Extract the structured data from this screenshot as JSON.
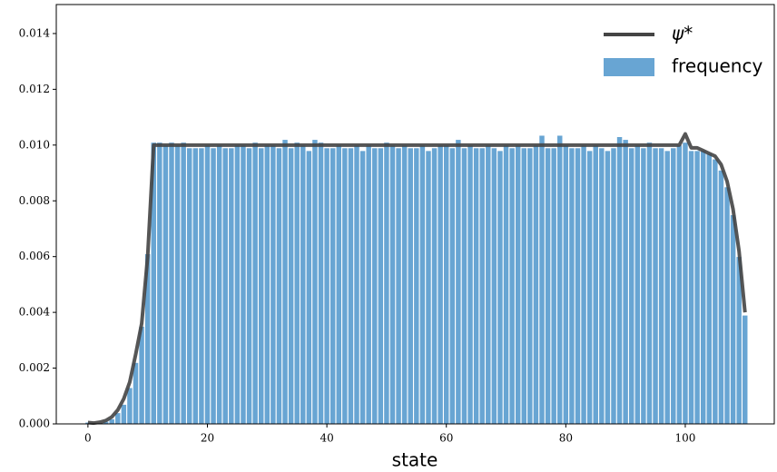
{
  "chart_data": {
    "type": "bar",
    "xlabel": "state",
    "legend": "upper right",
    "x": [
      0,
      1,
      2,
      3,
      4,
      5,
      6,
      7,
      8,
      9,
      10,
      11,
      12,
      13,
      14,
      15,
      16,
      17,
      18,
      19,
      20,
      21,
      22,
      23,
      24,
      25,
      26,
      27,
      28,
      29,
      30,
      31,
      32,
      33,
      34,
      35,
      36,
      37,
      38,
      39,
      40,
      41,
      42,
      43,
      44,
      45,
      46,
      47,
      48,
      49,
      50,
      51,
      52,
      53,
      54,
      55,
      56,
      57,
      58,
      59,
      60,
      61,
      62,
      63,
      64,
      65,
      66,
      67,
      68,
      69,
      70,
      71,
      72,
      73,
      74,
      75,
      76,
      77,
      78,
      79,
      80,
      81,
      82,
      83,
      84,
      85,
      86,
      87,
      88,
      89,
      90,
      91,
      92,
      93,
      94,
      95,
      96,
      97,
      98,
      99,
      100,
      101,
      102,
      103,
      104,
      105,
      106,
      107,
      108,
      109,
      110
    ],
    "series": [
      {
        "name": "frequency",
        "type": "bar",
        "color": "#68a5d3",
        "values": [
          6e-05,
          2e-05,
          4e-05,
          9e-05,
          0.00018,
          0.0004,
          0.0007,
          0.0013,
          0.0022,
          0.0035,
          0.0061,
          0.0101,
          0.0101,
          0.01,
          0.0101,
          0.01,
          0.0101,
          0.0099,
          0.0099,
          0.0099,
          0.01,
          0.0099,
          0.01,
          0.0099,
          0.0099,
          0.01,
          0.01,
          0.0099,
          0.0101,
          0.0099,
          0.01,
          0.01,
          0.0099,
          0.0102,
          0.0099,
          0.0101,
          0.01,
          0.0098,
          0.0102,
          0.0101,
          0.0099,
          0.0099,
          0.01,
          0.0099,
          0.0099,
          0.01,
          0.0098,
          0.01,
          0.0099,
          0.0099,
          0.0101,
          0.01,
          0.0099,
          0.01,
          0.0099,
          0.0099,
          0.01,
          0.0098,
          0.0099,
          0.01,
          0.01,
          0.0099,
          0.0102,
          0.0099,
          0.01,
          0.0099,
          0.0099,
          0.01,
          0.0099,
          0.0098,
          0.01,
          0.0099,
          0.01,
          0.0099,
          0.0099,
          0.01,
          0.01035,
          0.0099,
          0.0099,
          0.01035,
          0.01,
          0.0099,
          0.0099,
          0.01,
          0.0098,
          0.01,
          0.0099,
          0.0098,
          0.0099,
          0.0103,
          0.0102,
          0.0099,
          0.01,
          0.0099,
          0.0101,
          0.0099,
          0.0099,
          0.0098,
          0.0099,
          0.01,
          0.0101,
          0.0098,
          0.0098,
          0.0098,
          0.0097,
          0.0095,
          0.0091,
          0.0085,
          0.0075,
          0.006,
          0.0039
        ]
      },
      {
        "name": "ψ*",
        "type": "line",
        "color": "#444444",
        "values": [
          5e-05,
          3e-05,
          6e-05,
          0.00012,
          0.00025,
          0.0005,
          0.0009,
          0.0015,
          0.0025,
          0.0036,
          0.006,
          0.01,
          0.01,
          0.01,
          0.01,
          0.01,
          0.01,
          0.01,
          0.01,
          0.01,
          0.01,
          0.01,
          0.01,
          0.01,
          0.01,
          0.01,
          0.01,
          0.01,
          0.01,
          0.01,
          0.01,
          0.01,
          0.01,
          0.01,
          0.01,
          0.01,
          0.01,
          0.01,
          0.01,
          0.01,
          0.01,
          0.01,
          0.01,
          0.01,
          0.01,
          0.01,
          0.01,
          0.01,
          0.01,
          0.01,
          0.01,
          0.01,
          0.01,
          0.01,
          0.01,
          0.01,
          0.01,
          0.01,
          0.01,
          0.01,
          0.01,
          0.01,
          0.01,
          0.01,
          0.01,
          0.01,
          0.01,
          0.01,
          0.01,
          0.01,
          0.01,
          0.01,
          0.01,
          0.01,
          0.01,
          0.01,
          0.01,
          0.01,
          0.01,
          0.01,
          0.01,
          0.01,
          0.01,
          0.01,
          0.01,
          0.01,
          0.01,
          0.01,
          0.01,
          0.01,
          0.01,
          0.01,
          0.01,
          0.01,
          0.01,
          0.01,
          0.01,
          0.01,
          0.01,
          0.01,
          0.0104,
          0.0099,
          0.0099,
          0.0098,
          0.0097,
          0.0096,
          0.0093,
          0.0087,
          0.0077,
          0.0062,
          0.004
        ]
      }
    ],
    "xlim": [
      -5.3,
      114.9
    ],
    "xticks": [
      0,
      20,
      40,
      60,
      80,
      100
    ],
    "ylim": [
      0,
      0.01504
    ],
    "yticks": [
      {
        "value": 0,
        "label": "0.000"
      },
      0.002,
      0.004,
      0.006,
      0.008,
      {
        "value": 0.01,
        "label": "0.010"
      },
      0.012,
      0.014
    ]
  }
}
